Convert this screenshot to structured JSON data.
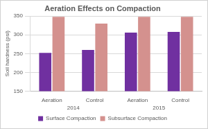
{
  "chart_data": {
    "type": "bar",
    "title": "Aeration Effects on Compaction",
    "y_label": "Soil hardness (psi)",
    "categories": [
      "Aeration",
      "Control",
      "Aeration",
      "Control"
    ],
    "category_groups": [
      {
        "label": "2014",
        "size": 2
      },
      {
        "label": "2015",
        "size": 2
      }
    ],
    "series": [
      {
        "name": "Surface Compaction",
        "color": "#7030a0",
        "values": [
          252,
          260,
          306,
          308
        ]
      },
      {
        "name": "Subsurface Compaction",
        "color": "#d4918e",
        "values": [
          348,
          330,
          348,
          348
        ]
      }
    ],
    "ylim": [
      150,
      350
    ],
    "yticks": [
      150,
      200,
      250,
      300,
      350
    ],
    "grid": true,
    "legend": "bottom"
  }
}
